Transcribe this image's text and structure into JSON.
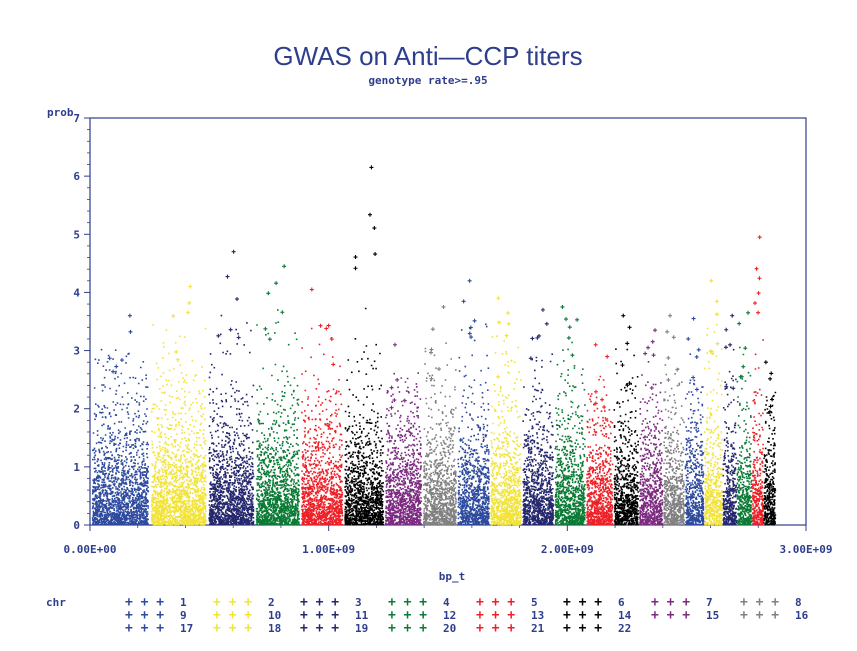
{
  "chart_data": {
    "type": "scatter",
    "title": "GWAS on Anti—CCP titers",
    "subtitle": "genotype rate>=.95",
    "xlabel": "bp_t",
    "ylabel": "prob",
    "xlim": [
      0,
      3000000000
    ],
    "ylim": [
      0,
      7
    ],
    "x_ticks": [
      "0.00E+00",
      "1.00E+09",
      "2.00E+09",
      "3.00E+09"
    ],
    "y_ticks": [
      "0",
      "1",
      "2",
      "3",
      "4",
      "5",
      "6",
      "7"
    ],
    "legend_title": "chr",
    "legend_position": "bottom",
    "series": [
      {
        "name": "1",
        "color": "#2e4a9e",
        "x_range": [
          0,
          248000000
        ],
        "peak": 3.6
      },
      {
        "name": "2",
        "color": "#f2e33a",
        "x_range": [
          248000000,
          490000000
        ],
        "peak": 4.1
      },
      {
        "name": "3",
        "color": "#25276e",
        "x_range": [
          490000000,
          688000000
        ],
        "peak": 4.7
      },
      {
        "name": "4",
        "color": "#0a7a35",
        "x_range": [
          688000000,
          879000000
        ],
        "peak": 4.45
      },
      {
        "name": "5",
        "color": "#ee2027",
        "x_range": [
          879000000,
          1060000000
        ],
        "peak": 4.05
      },
      {
        "name": "6",
        "color": "#000000",
        "x_range": [
          1060000000,
          1231000000
        ],
        "peak": 6.15
      },
      {
        "name": "7",
        "color": "#7b2a80",
        "x_range": [
          1231000000,
          1390000000
        ],
        "peak": 3.1
      },
      {
        "name": "8",
        "color": "#808080",
        "x_range": [
          1390000000,
          1535000000
        ],
        "peak": 3.75
      },
      {
        "name": "9",
        "color": "#2e4a9e",
        "x_range": [
          1535000000,
          1673000000
        ],
        "peak": 4.2
      },
      {
        "name": "10",
        "color": "#f2e33a",
        "x_range": [
          1673000000,
          1807000000
        ],
        "peak": 3.9
      },
      {
        "name": "11",
        "color": "#25276e",
        "x_range": [
          1807000000,
          1942000000
        ],
        "peak": 3.7
      },
      {
        "name": "12",
        "color": "#0a7a35",
        "x_range": [
          1942000000,
          2075000000
        ],
        "peak": 3.75
      },
      {
        "name": "13",
        "color": "#ee2027",
        "x_range": [
          2075000000,
          2190000000
        ],
        "peak": 3.1
      },
      {
        "name": "14",
        "color": "#000000",
        "x_range": [
          2190000000,
          2297000000
        ],
        "peak": 3.6
      },
      {
        "name": "15",
        "color": "#7b2a80",
        "x_range": [
          2297000000,
          2399000000
        ],
        "peak": 3.35
      },
      {
        "name": "16",
        "color": "#808080",
        "x_range": [
          2399000000,
          2489000000
        ],
        "peak": 3.6
      },
      {
        "name": "17",
        "color": "#2e4a9e",
        "x_range": [
          2489000000,
          2570000000
        ],
        "peak": 3.55
      },
      {
        "name": "18",
        "color": "#f2e33a",
        "x_range": [
          2570000000,
          2648000000
        ],
        "peak": 4.2
      },
      {
        "name": "19",
        "color": "#25276e",
        "x_range": [
          2648000000,
          2707000000
        ],
        "peak": 3.6
      },
      {
        "name": "20",
        "color": "#0a7a35",
        "x_range": [
          2707000000,
          2771000000
        ],
        "peak": 3.65
      },
      {
        "name": "21",
        "color": "#ee2027",
        "x_range": [
          2771000000,
          2819000000
        ],
        "peak": 4.95
      },
      {
        "name": "22",
        "color": "#000000",
        "x_range": [
          2819000000,
          2870000000
        ],
        "peak": 2.8
      }
    ]
  }
}
